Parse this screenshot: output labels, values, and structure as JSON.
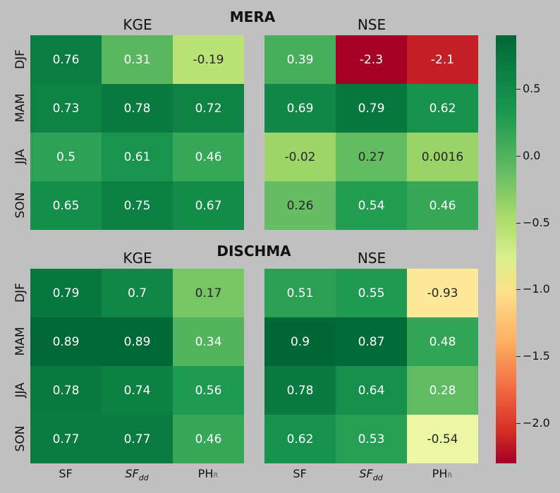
{
  "chart_data": [
    {
      "type": "heatmap",
      "title": "MERA",
      "panels": [
        {
          "title": "KGE",
          "rows": [
            "DJF",
            "MAM",
            "JJA",
            "SON"
          ],
          "columns": [
            "SF",
            "SFdd",
            "PHR"
          ],
          "values": [
            [
              0.76,
              0.31,
              -0.19
            ],
            [
              0.73,
              0.78,
              0.72
            ],
            [
              0.5,
              0.61,
              0.46
            ],
            [
              0.65,
              0.75,
              0.67
            ]
          ],
          "labels": [
            [
              "0.76",
              "0.31",
              "-0.19"
            ],
            [
              "0.73",
              "0.78",
              "0.72"
            ],
            [
              "0.5",
              "0.61",
              "0.46"
            ],
            [
              "0.65",
              "0.75",
              "0.67"
            ]
          ]
        },
        {
          "title": "NSE",
          "rows": [
            "DJF",
            "MAM",
            "JJA",
            "SON"
          ],
          "columns": [
            "SF",
            "SFdd",
            "PHR"
          ],
          "values": [
            [
              0.39,
              -2.3,
              -2.1
            ],
            [
              0.69,
              0.79,
              0.62
            ],
            [
              -0.02,
              0.27,
              0.0016
            ],
            [
              0.26,
              0.54,
              0.46
            ]
          ],
          "labels": [
            [
              "0.39",
              "-2.3",
              "-2.1"
            ],
            [
              "0.69",
              "0.79",
              "0.62"
            ],
            [
              "-0.02",
              "0.27",
              "0.0016"
            ],
            [
              "0.26",
              "0.54",
              "0.46"
            ]
          ]
        }
      ]
    },
    {
      "type": "heatmap",
      "title": "DISCHMA",
      "panels": [
        {
          "title": "KGE",
          "rows": [
            "DJF",
            "MAM",
            "JJA",
            "SON"
          ],
          "columns": [
            "SF",
            "SFdd",
            "PHR"
          ],
          "values": [
            [
              0.79,
              0.7,
              0.17
            ],
            [
              0.89,
              0.89,
              0.34
            ],
            [
              0.78,
              0.74,
              0.56
            ],
            [
              0.77,
              0.77,
              0.46
            ]
          ],
          "labels": [
            [
              "0.79",
              "0.7",
              "0.17"
            ],
            [
              "0.89",
              "0.89",
              "0.34"
            ],
            [
              "0.78",
              "0.74",
              "0.56"
            ],
            [
              "0.77",
              "0.77",
              "0.46"
            ]
          ]
        },
        {
          "title": "NSE",
          "rows": [
            "DJF",
            "MAM",
            "JJA",
            "SON"
          ],
          "columns": [
            "SF",
            "SFdd",
            "PHR"
          ],
          "values": [
            [
              0.51,
              0.55,
              -0.93
            ],
            [
              0.9,
              0.87,
              0.48
            ],
            [
              0.78,
              0.64,
              0.28
            ],
            [
              0.62,
              0.53,
              -0.54
            ]
          ],
          "labels": [
            [
              "0.51",
              "0.55",
              "-0.93"
            ],
            [
              "0.9",
              "0.87",
              "0.48"
            ],
            [
              "0.78",
              "0.64",
              "0.28"
            ],
            [
              "0.62",
              "0.53",
              "-0.54"
            ]
          ]
        }
      ]
    }
  ],
  "row_labels": [
    "DJF",
    "MAM",
    "JJA",
    "SON"
  ],
  "x_labels": {
    "sf": "SF",
    "sfdd_main": "SF",
    "sfdd_sub": "dd",
    "phr_main": "PH",
    "phr_sub": "R"
  },
  "colorbar": {
    "colormap": "RdYlGn",
    "range": [
      -2.3,
      0.9
    ],
    "ticks": [
      "0.5",
      "0.0",
      "−0.5",
      "−1.0",
      "−1.5",
      "−2.0"
    ],
    "tick_values": [
      0.5,
      0.0,
      -0.5,
      -1.0,
      -1.5,
      -2.0
    ]
  }
}
